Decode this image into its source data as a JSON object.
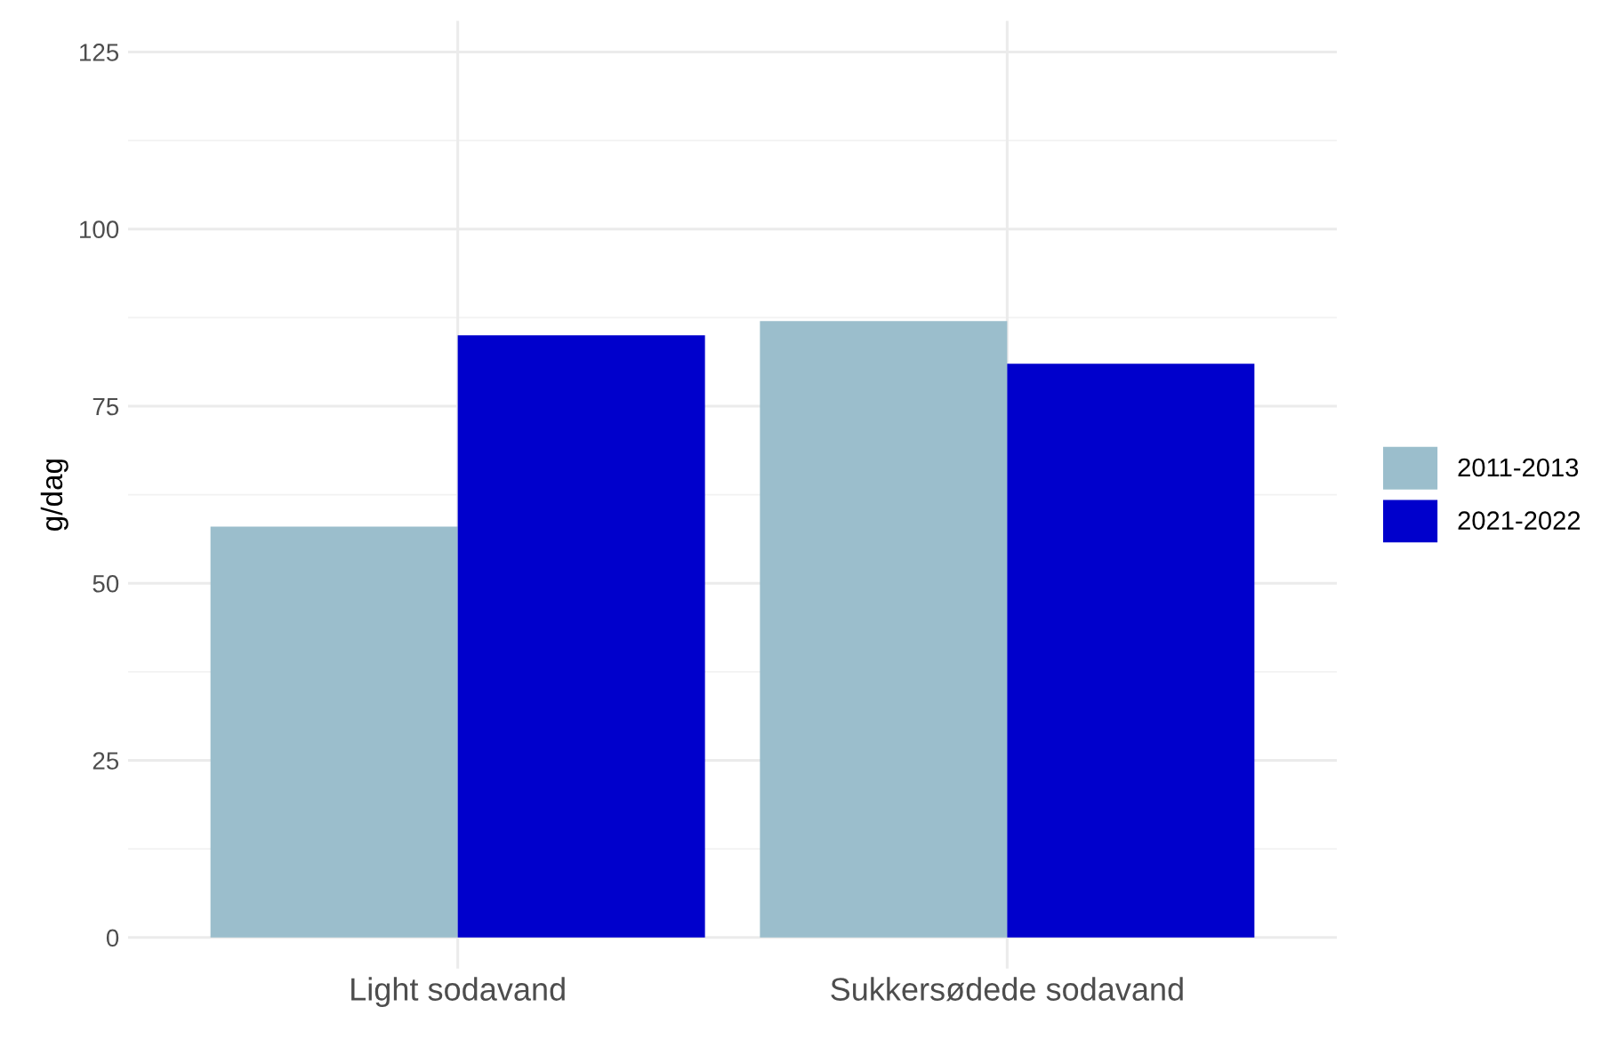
{
  "chart_data": {
    "type": "bar",
    "ylabel": "g/dag",
    "categories": [
      "Light sodavand",
      "Sukkersødede sodavand"
    ],
    "series": [
      {
        "name": "2011-2013",
        "color": "#9bbecc",
        "values": [
          58,
          87
        ]
      },
      {
        "name": "2021-2022",
        "color": "#0000cc",
        "values": [
          85,
          81
        ]
      }
    ],
    "ylim": [
      0,
      125
    ],
    "yticks": [
      0,
      25,
      50,
      75,
      100,
      125
    ],
    "grid": true,
    "legend": "right"
  }
}
